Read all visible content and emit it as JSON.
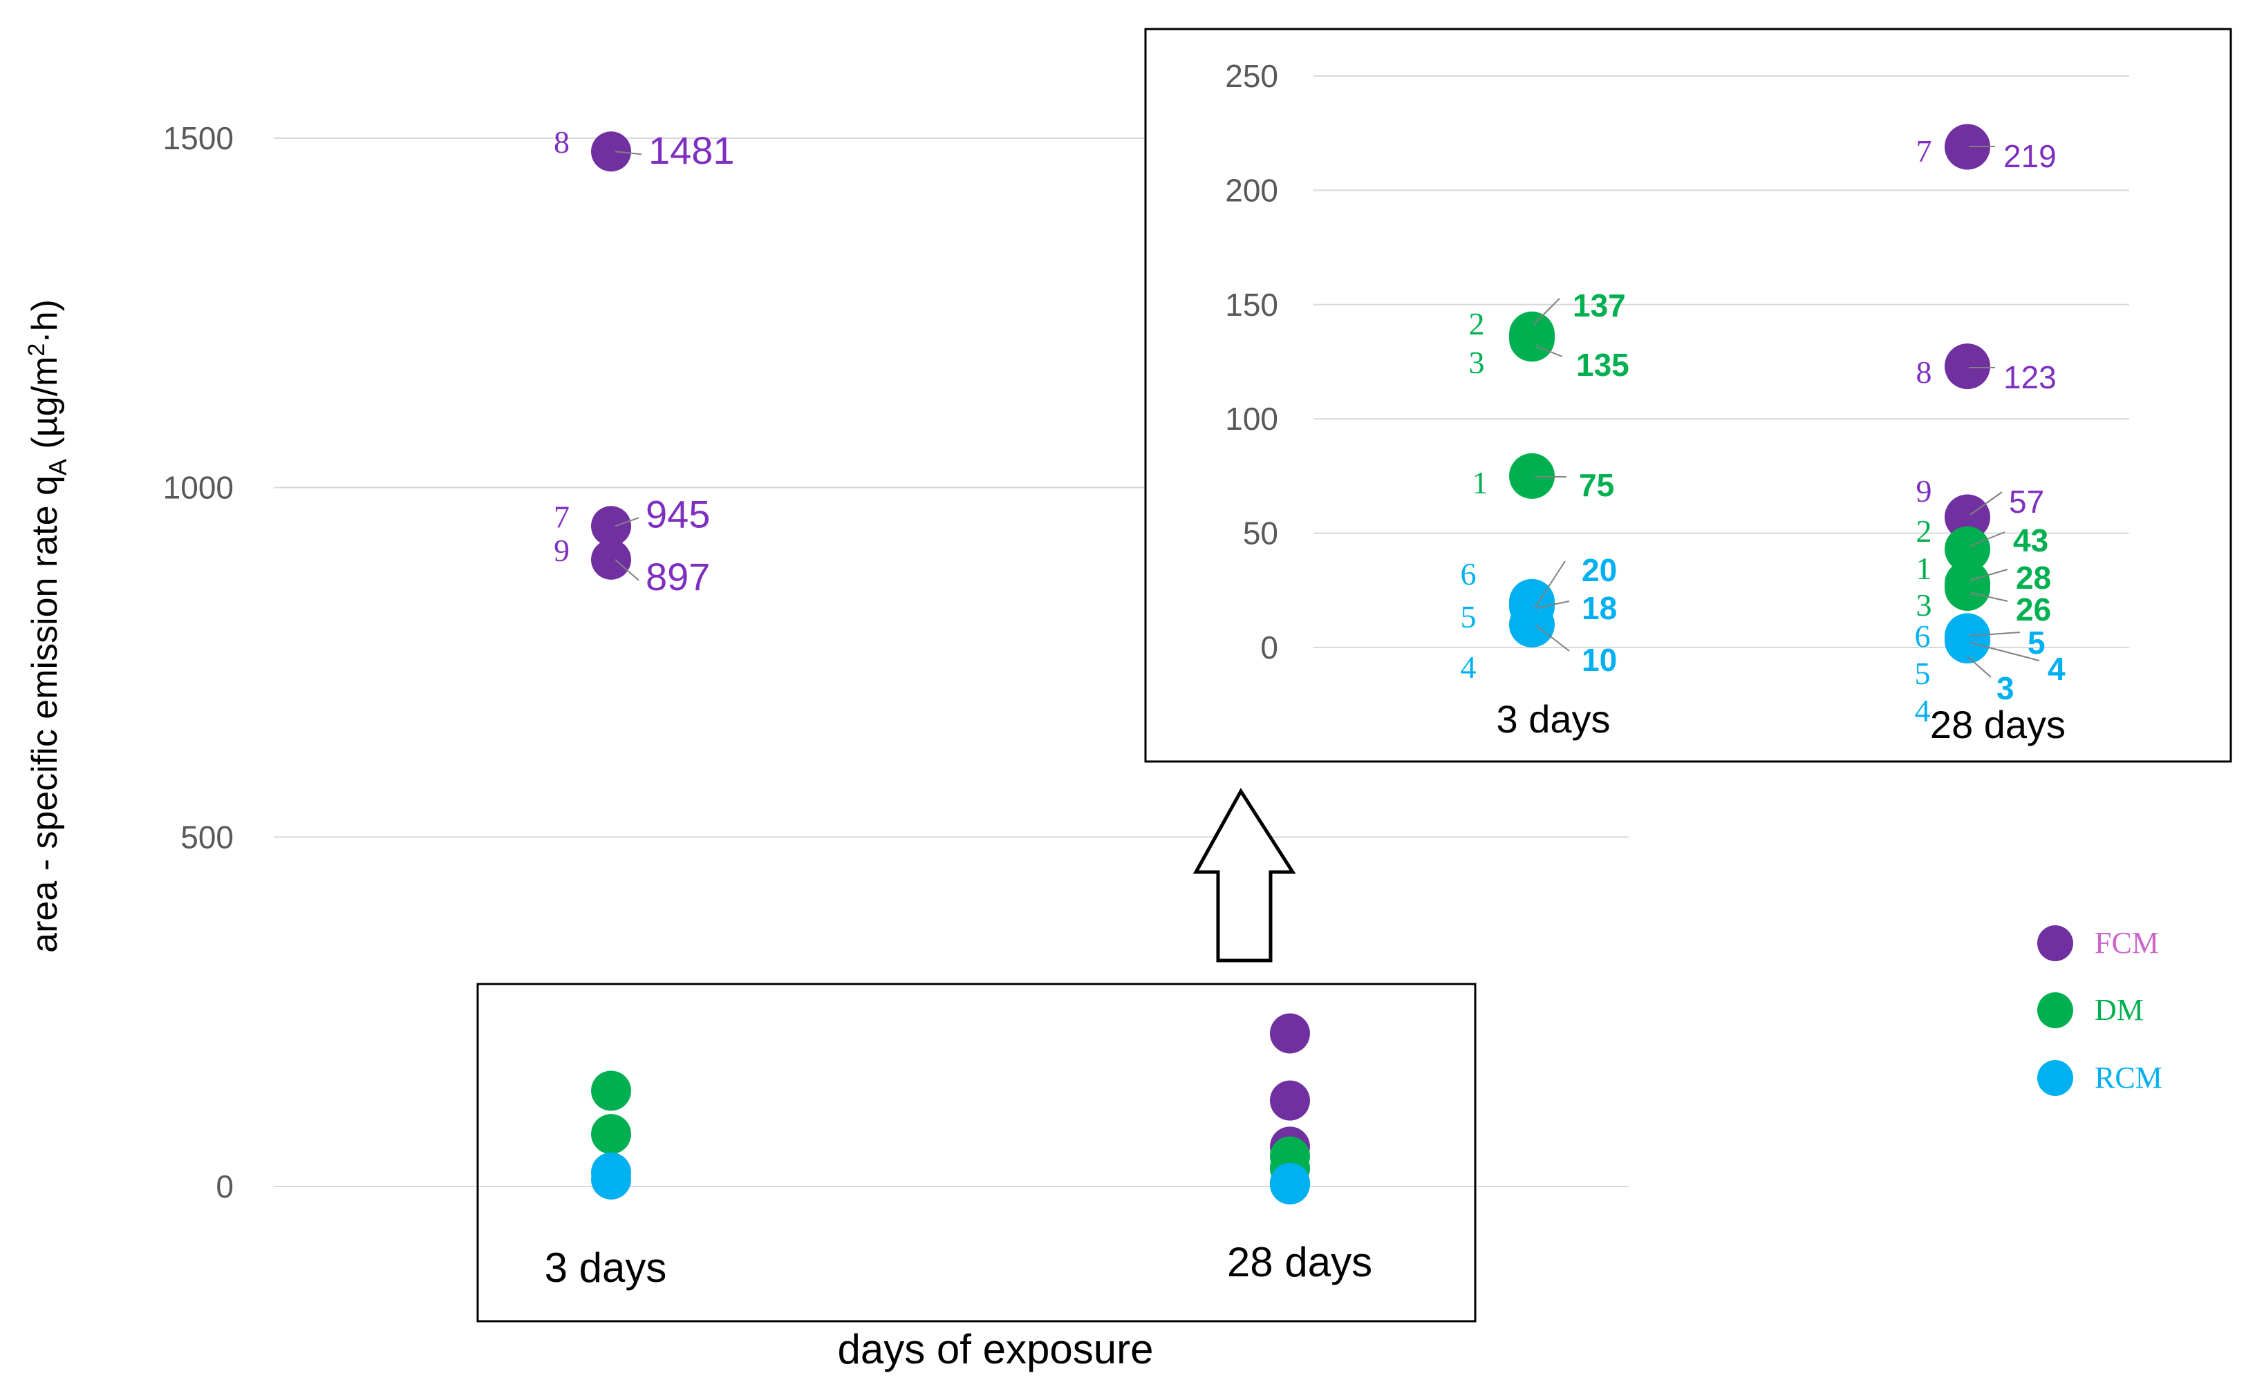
{
  "colors": {
    "FCM": "#7030a0",
    "DM": "#00b050",
    "RCM": "#00b0f0",
    "FCM_label": "#7f2fc0",
    "legend_FCM": "#cc66cc"
  },
  "chart_data": [
    {
      "type": "scatter",
      "ylabel_main": "area - specific emission rate q",
      "ylabel_sub": "A",
      "ylabel_unit_open": " (µg/m",
      "ylabel_unit_sup": "2",
      "ylabel_unit_close": "·h)",
      "xlabel": "days of exposure",
      "categories": [
        "3 days",
        "28 days"
      ],
      "ylim": [
        0,
        1500
      ],
      "yticks": [
        "0",
        "500",
        "1000",
        "1500"
      ],
      "grid": true,
      "series": [
        {
          "name": "FCM",
          "points": [
            {
              "x": "3 days",
              "y": 1481,
              "id": "8",
              "label": "1481"
            },
            {
              "x": "3 days",
              "y": 945,
              "id": "7",
              "label": "945"
            },
            {
              "x": "3 days",
              "y": 897,
              "id": "9",
              "label": "897"
            },
            {
              "x": "28 days",
              "y": 219
            },
            {
              "x": "28 days",
              "y": 123
            },
            {
              "x": "28 days",
              "y": 57
            }
          ]
        },
        {
          "name": "DM",
          "points": [
            {
              "x": "3 days",
              "y": 137
            },
            {
              "x": "3 days",
              "y": 75
            },
            {
              "x": "28 days",
              "y": 43
            },
            {
              "x": "28 days",
              "y": 26
            }
          ]
        },
        {
          "name": "RCM",
          "points": [
            {
              "x": "3 days",
              "y": 20
            },
            {
              "x": "3 days",
              "y": 10
            },
            {
              "x": "28 days",
              "y": 5
            },
            {
              "x": "28 days",
              "y": 3
            }
          ]
        }
      ],
      "legend": [
        {
          "name": "FCM",
          "label": "FCM"
        },
        {
          "name": "DM",
          "label": "DM"
        },
        {
          "name": "RCM",
          "label": "RCM"
        }
      ],
      "legend_position": "right"
    },
    {
      "type": "scatter",
      "role": "inset",
      "categories": [
        "3 days",
        "28 days"
      ],
      "ylim": [
        0,
        250
      ],
      "yticks": [
        "0",
        "50",
        "100",
        "150",
        "200",
        "250"
      ],
      "grid": true,
      "series": [
        {
          "name": "FCM",
          "points": [
            {
              "x": "28 days",
              "y": 219,
              "id": "7",
              "label": "219"
            },
            {
              "x": "28 days",
              "y": 123,
              "id": "8",
              "label": "123"
            },
            {
              "x": "28 days",
              "y": 57,
              "id": "9",
              "label": "57"
            }
          ]
        },
        {
          "name": "DM",
          "points": [
            {
              "x": "3 days",
              "y": 137,
              "id": "2",
              "label": "137"
            },
            {
              "x": "3 days",
              "y": 135,
              "id": "3",
              "label": "135"
            },
            {
              "x": "3 days",
              "y": 75,
              "id": "1",
              "label": "75"
            },
            {
              "x": "28 days",
              "y": 43,
              "id": "2",
              "label": "43"
            },
            {
              "x": "28 days",
              "y": 28,
              "id": "1",
              "label": "28"
            },
            {
              "x": "28 days",
              "y": 26,
              "id": "3",
              "label": "26"
            }
          ]
        },
        {
          "name": "RCM",
          "points": [
            {
              "x": "3 days",
              "y": 20,
              "id": "6",
              "label": "20"
            },
            {
              "x": "3 days",
              "y": 18,
              "id": "5",
              "label": "18"
            },
            {
              "x": "3 days",
              "y": 10,
              "id": "4",
              "label": "10"
            },
            {
              "x": "28 days",
              "y": 5,
              "id": "6",
              "label": "5"
            },
            {
              "x": "28 days",
              "y": 4,
              "id": "5",
              "label": "4"
            },
            {
              "x": "28 days",
              "y": 3,
              "id": "4",
              "label": "3"
            }
          ]
        }
      ]
    }
  ]
}
